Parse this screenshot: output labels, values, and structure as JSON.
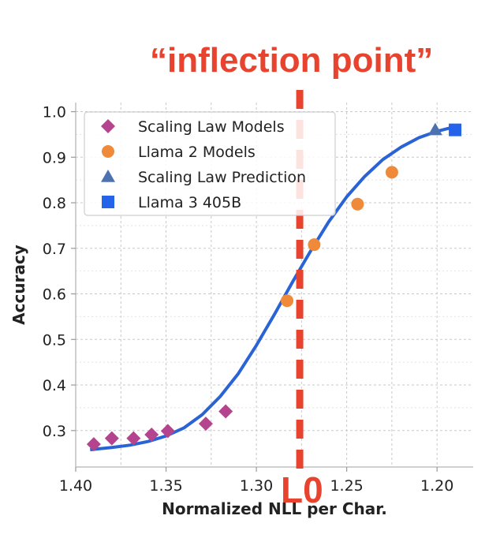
{
  "chart_data": {
    "type": "scatter",
    "title": "",
    "xlabel": "Normalized NLL per Char.",
    "ylabel": "Accuracy",
    "xlim": [
      1.4,
      1.18
    ],
    "ylim": [
      0.22,
      1.02
    ],
    "x_reversed": true,
    "xticks": [
      1.4,
      1.35,
      1.3,
      1.25,
      1.2
    ],
    "xtick_labels": [
      "1.40",
      "1.35",
      "1.30",
      "1.25",
      "1.20"
    ],
    "yticks": [
      0.3,
      0.4,
      0.5,
      0.6,
      0.7,
      0.8,
      0.9,
      1.0
    ],
    "ytick_labels": [
      "0.3",
      "0.4",
      "0.5",
      "0.6",
      "0.7",
      "0.8",
      "0.9",
      "1.0"
    ],
    "grid": true,
    "legend_position": "top-left",
    "series": [
      {
        "name": "Scaling Law Models",
        "marker": "diamond",
        "color": "#b5448f",
        "x": [
          1.39,
          1.38,
          1.368,
          1.358,
          1.349,
          1.328,
          1.317
        ],
        "y": [
          0.27,
          0.283,
          0.283,
          0.291,
          0.299,
          0.315,
          0.342
        ]
      },
      {
        "name": "Llama 2 Models",
        "marker": "circle",
        "color": "#ef8a3a",
        "x": [
          1.283,
          1.268,
          1.244,
          1.225
        ],
        "y": [
          0.585,
          0.708,
          0.797,
          0.867
        ]
      },
      {
        "name": "Scaling Law Prediction",
        "marker": "triangle",
        "color": "#4c72b0",
        "x": [
          1.201
        ],
        "y": [
          0.96
        ]
      },
      {
        "name": "Llama 3 405B",
        "marker": "square",
        "color": "#2563eb",
        "x": [
          1.19
        ],
        "y": [
          0.96
        ]
      }
    ],
    "fit_curve": {
      "color": "#2a63d6",
      "x": [
        1.392,
        1.38,
        1.37,
        1.36,
        1.35,
        1.34,
        1.33,
        1.32,
        1.31,
        1.3,
        1.29,
        1.28,
        1.27,
        1.26,
        1.25,
        1.24,
        1.23,
        1.22,
        1.21,
        1.2,
        1.19
      ],
      "y": [
        0.258,
        0.263,
        0.268,
        0.276,
        0.288,
        0.306,
        0.335,
        0.375,
        0.425,
        0.487,
        0.555,
        0.626,
        0.694,
        0.758,
        0.813,
        0.858,
        0.895,
        0.922,
        0.943,
        0.957,
        0.967
      ]
    },
    "vline": {
      "x": 1.276,
      "label": "L0",
      "color": "#e8432e"
    },
    "annotation": "“inflection point”"
  }
}
